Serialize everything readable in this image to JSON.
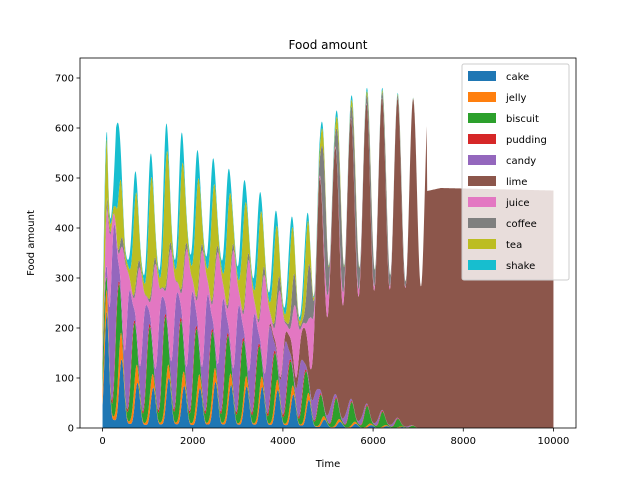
{
  "chart_data": {
    "type": "area",
    "title": "Food amount",
    "xlabel": "Time",
    "ylabel": "Food amount",
    "xlim": [
      -500,
      10500
    ],
    "ylim": [
      0,
      740
    ],
    "xticks": [
      0,
      2000,
      4000,
      6000,
      8000,
      10000
    ],
    "yticks": [
      0,
      100,
      200,
      300,
      400,
      500,
      600,
      700
    ],
    "stacked": true,
    "oscillating": true,
    "legend_position": "top-right",
    "series": [
      {
        "name": "cake",
        "color": "#1f77b4",
        "x": [
          0,
          100,
          300,
          500,
          1000,
          1500,
          2000,
          2500,
          3000,
          3500,
          4000,
          4600,
          4800,
          5500,
          6000,
          7000,
          10000
        ],
        "values": [
          80,
          130,
          100,
          60,
          40,
          55,
          40,
          50,
          45,
          45,
          40,
          30,
          10,
          5,
          3,
          0,
          0
        ]
      },
      {
        "name": "jelly",
        "color": "#ff7f0e",
        "x": [
          0,
          100,
          300,
          500,
          1000,
          1500,
          2000,
          2500,
          3000,
          3500,
          4000,
          4600,
          4800,
          5500,
          6000,
          7000,
          10000
        ],
        "values": [
          20,
          40,
          40,
          30,
          20,
          20,
          20,
          20,
          15,
          15,
          15,
          10,
          5,
          3,
          2,
          0,
          0
        ]
      },
      {
        "name": "biscuit",
        "color": "#2ca02c",
        "x": [
          0,
          100,
          300,
          500,
          1000,
          1500,
          2000,
          2500,
          3000,
          3500,
          4000,
          4600,
          4800,
          5500,
          6000,
          7000,
          10000
        ],
        "values": [
          30,
          70,
          100,
          70,
          80,
          90,
          80,
          70,
          70,
          60,
          50,
          40,
          30,
          25,
          20,
          0,
          0
        ]
      },
      {
        "name": "pudding",
        "color": "#d62728",
        "x": [
          0,
          100,
          300,
          500,
          1000,
          1500,
          2000,
          2500,
          3000,
          3500,
          4000,
          4600,
          4800,
          5500,
          6000,
          7000,
          10000
        ],
        "values": [
          5,
          10,
          10,
          8,
          8,
          8,
          8,
          8,
          8,
          8,
          8,
          5,
          3,
          2,
          2,
          0,
          0
        ]
      },
      {
        "name": "candy",
        "color": "#9467bd",
        "x": [
          0,
          100,
          300,
          500,
          1000,
          1500,
          2000,
          2500,
          3000,
          3500,
          4000,
          4600,
          4800,
          5500,
          6000,
          7000,
          10000
        ],
        "values": [
          60,
          150,
          180,
          120,
          90,
          100,
          110,
          110,
          100,
          90,
          70,
          40,
          20,
          10,
          5,
          0,
          0
        ]
      },
      {
        "name": "lime",
        "color": "#8c564b",
        "x": [
          0,
          100,
          300,
          500,
          1000,
          1500,
          2000,
          2500,
          3000,
          3500,
          4000,
          4600,
          4800,
          5500,
          6000,
          7000,
          7500,
          10000
        ],
        "values": [
          0,
          0,
          0,
          0,
          0,
          0,
          0,
          0,
          0,
          0,
          10,
          60,
          300,
          400,
          440,
          470,
          480,
          475
        ]
      },
      {
        "name": "juice",
        "color": "#e377c2",
        "x": [
          0,
          100,
          300,
          500,
          1000,
          1500,
          2000,
          2500,
          3000,
          3500,
          4000,
          4600,
          4800,
          5500,
          6000,
          7000,
          10000
        ],
        "values": [
          40,
          80,
          100,
          100,
          110,
          120,
          130,
          120,
          130,
          110,
          90,
          60,
          30,
          10,
          5,
          0,
          0
        ]
      },
      {
        "name": "coffee",
        "color": "#7f7f7f",
        "x": [
          0,
          100,
          300,
          500,
          1000,
          1500,
          2000,
          2500,
          3000,
          3500,
          4000,
          4600,
          4800,
          5500,
          6000,
          7000,
          10000
        ],
        "values": [
          5,
          10,
          10,
          10,
          10,
          10,
          10,
          10,
          10,
          10,
          20,
          60,
          100,
          60,
          40,
          0,
          0
        ]
      },
      {
        "name": "tea",
        "color": "#bcbd22",
        "x": [
          0,
          100,
          300,
          500,
          1000,
          1500,
          2000,
          2500,
          3000,
          3500,
          4000,
          4600,
          4800,
          5500,
          6000,
          7000,
          10000
        ],
        "values": [
          30,
          120,
          60,
          80,
          120,
          140,
          120,
          110,
          100,
          100,
          80,
          60,
          20,
          10,
          5,
          0,
          0
        ]
      },
      {
        "name": "shake",
        "color": "#17becf",
        "x": [
          0,
          100,
          300,
          500,
          1000,
          1500,
          2000,
          2500,
          3000,
          3500,
          4000,
          4600,
          4800,
          5500,
          6000,
          7000,
          10000
        ],
        "values": [
          10,
          50,
          100,
          40,
          40,
          50,
          50,
          50,
          50,
          40,
          30,
          20,
          10,
          5,
          3,
          0,
          0
        ]
      }
    ]
  }
}
